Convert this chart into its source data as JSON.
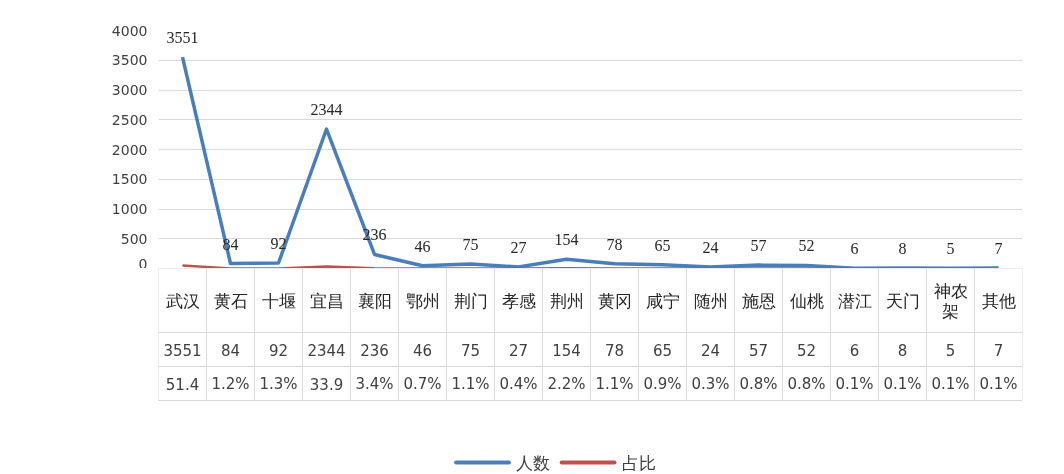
{
  "chart_data": {
    "type": "line",
    "categories": [
      "武汉",
      "黄石",
      "十堰",
      "宜昌",
      "襄阳",
      "鄂州",
      "荆门",
      "孝感",
      "荆州",
      "黄冈",
      "咸宁",
      "随州",
      "施恩",
      "仙桃",
      "潜江",
      "天门",
      "神农架",
      "其他"
    ],
    "series": [
      {
        "name": "人数",
        "color": "#4a7ebb",
        "values": [
          3551,
          84,
          92,
          2344,
          236,
          46,
          75,
          27,
          154,
          78,
          65,
          24,
          57,
          52,
          6,
          8,
          5,
          7
        ],
        "data_labels": true,
        "value_labels": [
          "3551",
          "84",
          "92",
          "2344",
          "236",
          "46",
          "75",
          "27",
          "154",
          "78",
          "65",
          "24",
          "57",
          "52",
          "6",
          "8",
          "5",
          "7"
        ]
      },
      {
        "name": "占比",
        "color": "#c0504d",
        "values": [
          51.4,
          1.2,
          1.3,
          33.9,
          3.4,
          0.7,
          1.1,
          0.4,
          2.2,
          1.1,
          0.9,
          0.3,
          0.8,
          0.8,
          0.1,
          0.1,
          0.1,
          0.1
        ],
        "value_labels": [
          "51.4",
          "1.2%",
          "1.3%",
          "33.9",
          "3.4%",
          "0.7%",
          "1.1%",
          "0.4%",
          "2.2%",
          "1.1%",
          "0.9%",
          "0.3%",
          "0.8%",
          "0.8%",
          "0.1%",
          "0.1%",
          "0.1%",
          "0.1%"
        ]
      }
    ],
    "ylim": [
      0,
      4000
    ],
    "yticks": [
      0,
      500,
      1000,
      1500,
      2000,
      2500,
      3000,
      3500,
      4000
    ],
    "grid": "y",
    "legend": "bottom",
    "marker": "none",
    "line_style": "solid"
  }
}
